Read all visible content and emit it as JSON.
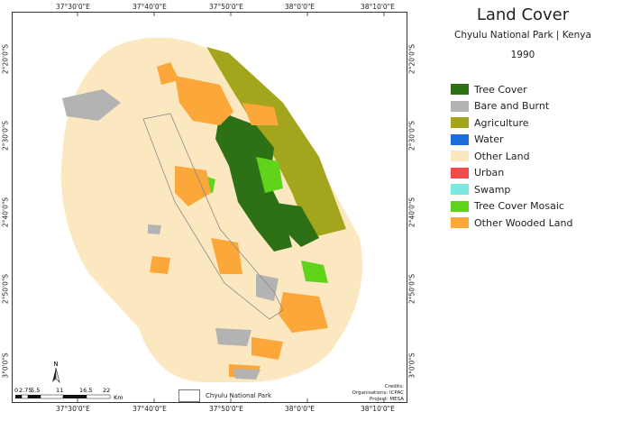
{
  "title": "Land Cover",
  "subtitle": "Chyulu National Park | Kenya",
  "year": "1990",
  "legend": [
    {
      "label": "Tree Cover",
      "color": "#2e7016"
    },
    {
      "label": "Bare and Burnt",
      "color": "#b3b3b3"
    },
    {
      "label": "Agriculture",
      "color": "#a3a61c"
    },
    {
      "label": "Water",
      "color": "#1a6fdb"
    },
    {
      "label": "Other Land",
      "color": "#fce8c0"
    },
    {
      "label": "Urban",
      "color": "#f14a4a"
    },
    {
      "label": "Swamp",
      "color": "#7de8e0"
    },
    {
      "label": "Tree Cover Mosaic",
      "color": "#5fd41a"
    },
    {
      "label": "Other Wooded Land",
      "color": "#fba739"
    }
  ],
  "lon_labels": [
    "37°30'0\"E",
    "37°40'0\"E",
    "37°50'0\"E",
    "38°0'0\"E",
    "38°10'0\"E"
  ],
  "lat_labels": [
    "2°20'0\"S",
    "2°30'0\"S",
    "2°40'0\"S",
    "2°50'0\"S",
    "3°0'0\"S"
  ],
  "scale": {
    "ticks": [
      "0",
      "2.75",
      "5.5",
      "11",
      "16.5",
      "22"
    ],
    "unit": "Km",
    "north": "N"
  },
  "park_key": "Chyulu National Park",
  "credits": [
    "Credits:",
    "Organisations: ICPAC",
    "Project: MESA"
  ]
}
